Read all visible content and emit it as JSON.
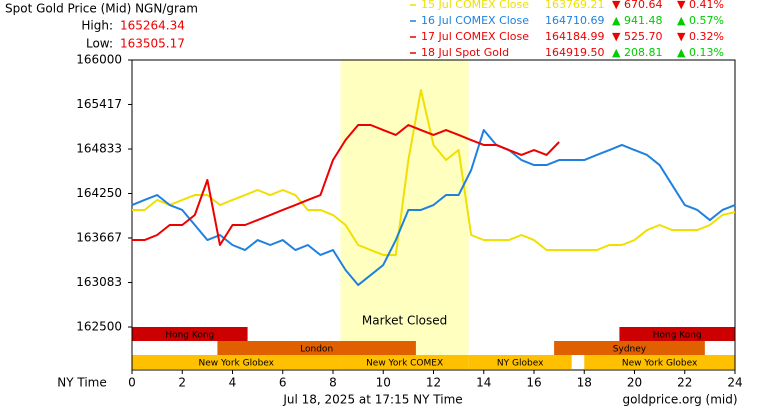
{
  "chart_data": {
    "type": "line",
    "title": "Spot Gold Price (Mid) NGN/gram",
    "high_label": "High:",
    "high_value": "165264.34",
    "low_label": "Low:",
    "low_value": "163505.17",
    "xlabel": "NY Time",
    "footer": "Jul 18, 2025 at 17:15 NY Time",
    "source": "goldprice.org (mid)",
    "closed_label": "Market Closed",
    "closed_band": [
      8.3,
      13.4
    ],
    "closed_color": "#ffffc0",
    "xlim": [
      0,
      24
    ],
    "xticks": [
      0,
      2,
      4,
      6,
      8,
      10,
      12,
      14,
      16,
      18,
      20,
      22,
      24
    ],
    "ylim": [
      162500,
      166000
    ],
    "yticks": [
      162500,
      163083,
      163667,
      164250,
      164833,
      165417,
      166000
    ],
    "x": [
      0,
      0.5,
      1,
      1.5,
      2,
      2.5,
      3,
      3.5,
      4,
      4.5,
      5,
      5.5,
      6,
      6.5,
      7,
      7.5,
      8,
      8.5,
      9,
      9.5,
      10,
      10.5,
      11,
      11.5,
      12,
      12.5,
      13,
      13.5,
      14,
      14.5,
      15,
      15.5,
      16,
      16.5,
      17,
      17.5,
      18,
      18.5,
      19,
      19.5,
      20,
      20.5,
      21,
      21.5,
      22,
      22.5,
      23,
      23.5,
      24
    ],
    "series": [
      {
        "name": "15 Jul COMEX Close",
        "color": "#f0e000",
        "close": "163769.21",
        "change": "▼ 670.64",
        "change_pct": "▼ 0.41%",
        "change_color": "#ee0000",
        "values": [
          164034,
          164034,
          164165,
          164099,
          164165,
          164230,
          164230,
          164099,
          164165,
          164230,
          164296,
          164230,
          164296,
          164230,
          164034,
          164034,
          163968,
          163837,
          163575,
          163509,
          163444,
          163444,
          164689,
          165607,
          164886,
          164689,
          164820,
          163706,
          163640,
          163640,
          163640,
          163706,
          163640,
          163509,
          163509,
          163509,
          163509,
          163509,
          163575,
          163575,
          163640,
          163771,
          163837,
          163771,
          163771,
          163771,
          163837,
          163968,
          164007
        ]
      },
      {
        "name": "16 Jul COMEX Close",
        "color": "#1f80e0",
        "close": "164710.69",
        "change": "▲ 941.48",
        "change_pct": "▲ 0.57%",
        "change_color": "#00cc00",
        "values": [
          164099,
          164165,
          164230,
          164099,
          164034,
          163837,
          163640,
          163706,
          163575,
          163509,
          163640,
          163575,
          163640,
          163509,
          163575,
          163444,
          163509,
          163247,
          163050,
          163181,
          163313,
          163640,
          164034,
          164034,
          164099,
          164230,
          164230,
          164558,
          165082,
          164886,
          164820,
          164689,
          164623,
          164623,
          164689,
          164689,
          164689,
          164755,
          164820,
          164886,
          164820,
          164755,
          164623,
          164361,
          164099,
          164034,
          163902,
          164034,
          164099
        ]
      },
      {
        "name": "17 Jul COMEX Close",
        "color": "#ee0000",
        "close": "164184.99",
        "change": "▼ 525.70",
        "change_pct": "▼ 0.32%",
        "change_color": "#ee0000"
      },
      {
        "name": "18 Jul Spot Gold",
        "color": "#ee0000",
        "close": "164919.50",
        "change": "▲ 208.81",
        "change_pct": "▲ 0.13%",
        "change_color": "#00cc00",
        "values": [
          163640,
          163640,
          163706,
          163837,
          163837,
          163968,
          164427,
          163575,
          163837,
          163837,
          163902,
          163968,
          164034,
          164099,
          164165,
          164230,
          164689,
          164951,
          165148,
          165148,
          165082,
          165017,
          165148,
          165082,
          165017,
          165082,
          165017,
          164951,
          164886,
          164886,
          164820,
          164755,
          164820,
          164755,
          164925,
          null,
          null,
          null,
          null,
          null,
          null,
          null,
          null,
          null,
          null,
          null,
          null,
          null,
          null
        ]
      }
    ],
    "sessions": [
      [
        {
          "name": "Hong Kong",
          "start": 0,
          "end": 4.6,
          "color": "#cc0000"
        },
        {
          "name": "Hong Kong",
          "start": 19.4,
          "end": 24,
          "color": "#cc0000"
        }
      ],
      [
        {
          "name": "London",
          "start": 3.4,
          "end": 11.3,
          "color": "#e06000"
        },
        {
          "name": "Sydney",
          "start": 16.8,
          "end": 22.8,
          "color": "#e06000"
        }
      ],
      [
        {
          "name": "New York Globex",
          "start": 0,
          "end": 8.3,
          "color": "#ffc000"
        },
        {
          "name": "New York COMEX",
          "start": 8.3,
          "end": 13.4,
          "color": "#ffc000"
        },
        {
          "name": "NY Globex",
          "start": 13.4,
          "end": 17.5,
          "color": "#ffc000"
        },
        {
          "name": "New York Globex",
          "start": 18,
          "end": 24,
          "color": "#ffc000"
        }
      ]
    ]
  }
}
